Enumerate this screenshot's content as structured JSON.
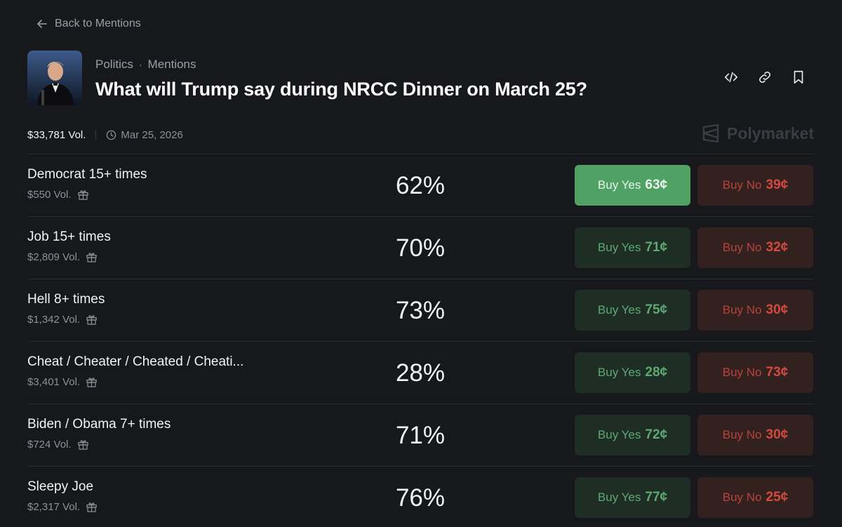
{
  "nav": {
    "back_label": "Back to Mentions"
  },
  "header": {
    "category": "Politics",
    "subcategory": "Mentions",
    "title": "What will Trump say during NRCC Dinner on March 25?"
  },
  "meta": {
    "volume": "$33,781 Vol.",
    "date": "Mar 25, 2026"
  },
  "brand": {
    "name": "Polymarket"
  },
  "colors": {
    "yes": "#4fa263",
    "no": "#d34a3f",
    "background": "#16181c"
  },
  "markets": [
    {
      "name": "Democrat 15+ times",
      "volume": "$550 Vol.",
      "percent": "62%",
      "yes_label": "Buy Yes",
      "yes_price": "63¢",
      "no_label": "Buy No",
      "no_price": "39¢"
    },
    {
      "name": "Job 15+ times",
      "volume": "$2,809 Vol.",
      "percent": "70%",
      "yes_label": "Buy Yes",
      "yes_price": "71¢",
      "no_label": "Buy No",
      "no_price": "32¢"
    },
    {
      "name": "Hell 8+ times",
      "volume": "$1,342 Vol.",
      "percent": "73%",
      "yes_label": "Buy Yes",
      "yes_price": "75¢",
      "no_label": "Buy No",
      "no_price": "30¢"
    },
    {
      "name": "Cheat / Cheater / Cheated / Cheati...",
      "volume": "$3,401 Vol.",
      "percent": "28%",
      "yes_label": "Buy Yes",
      "yes_price": "28¢",
      "no_label": "Buy No",
      "no_price": "73¢"
    },
    {
      "name": "Biden / Obama 7+ times",
      "volume": "$724 Vol.",
      "percent": "71%",
      "yes_label": "Buy Yes",
      "yes_price": "72¢",
      "no_label": "Buy No",
      "no_price": "30¢"
    },
    {
      "name": "Sleepy Joe",
      "volume": "$2,317 Vol.",
      "percent": "76%",
      "yes_label": "Buy Yes",
      "yes_price": "77¢",
      "no_label": "Buy No",
      "no_price": "25¢"
    }
  ]
}
